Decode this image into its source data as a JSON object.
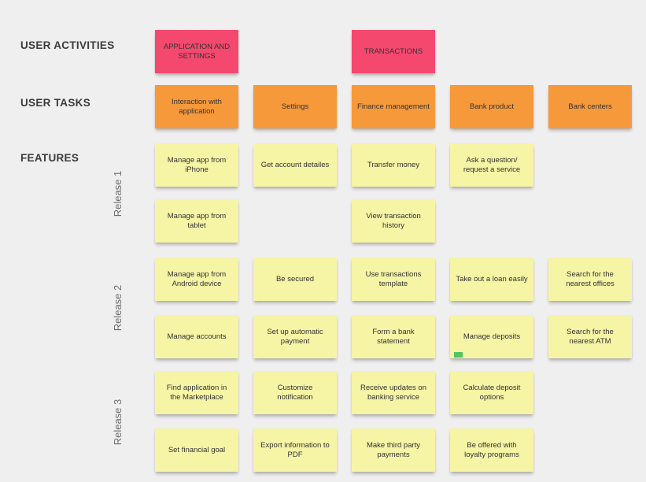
{
  "board": {
    "background_color": "#F0EFF0"
  },
  "colors": {
    "activity": "#F4486F",
    "task": "#F6993B",
    "feature": "#F6F4A5",
    "marker_green": "#4FC462",
    "note_text": "#333333",
    "section_label_text": "#3B3B3B",
    "release_label_text": "#6D6D6D"
  },
  "section_labels": {
    "user_activities": "USER ACTIVITIES",
    "user_tasks": "USER TASKS",
    "features": "FEATURES"
  },
  "release_labels": [
    "Release 1",
    "Release 2",
    "Release 3"
  ],
  "notes": [
    {
      "text": "APPLICATION AND SETTINGS",
      "type": "activity",
      "col": 0,
      "row": 0
    },
    {
      "text": "TRANSACTIONS",
      "type": "activity",
      "col": 2,
      "row": 0
    },
    {
      "text": "Interaction with application",
      "type": "task",
      "col": 0,
      "row": 1
    },
    {
      "text": "Settings",
      "type": "task",
      "col": 1,
      "row": 1
    },
    {
      "text": "Finance management",
      "type": "task",
      "col": 2,
      "row": 1
    },
    {
      "text": "Bank product",
      "type": "task",
      "col": 3,
      "row": 1
    },
    {
      "text": "Bank centers",
      "type": "task",
      "col": 4,
      "row": 1
    },
    {
      "text": "Manage app from iPhone",
      "type": "feature",
      "col": 0,
      "row": 2
    },
    {
      "text": "Get account detailes",
      "type": "feature",
      "col": 1,
      "row": 2
    },
    {
      "text": "Transfer money",
      "type": "feature",
      "col": 2,
      "row": 2
    },
    {
      "text": "Ask a question/ request a service",
      "type": "feature",
      "col": 3,
      "row": 2
    },
    {
      "text": "Manage app from tablet",
      "type": "feature",
      "col": 0,
      "row": 3
    },
    {
      "text": "View transaction history",
      "type": "feature",
      "col": 2,
      "row": 3
    },
    {
      "text": "Manage app from Android device",
      "type": "feature",
      "col": 0,
      "row": 4
    },
    {
      "text": "Be secured",
      "type": "feature",
      "col": 1,
      "row": 4
    },
    {
      "text": "Use transactions template",
      "type": "feature",
      "col": 2,
      "row": 4
    },
    {
      "text": "Take out a loan easily",
      "type": "feature",
      "col": 3,
      "row": 4
    },
    {
      "text": "Search for the nearest offices",
      "type": "feature",
      "col": 4,
      "row": 4
    },
    {
      "text": "Manage accounts",
      "type": "feature",
      "col": 0,
      "row": 5
    },
    {
      "text": "Set up automatic payment",
      "type": "feature",
      "col": 1,
      "row": 5
    },
    {
      "text": "Form a bank statement",
      "type": "feature",
      "col": 2,
      "row": 5
    },
    {
      "text": "Manage deposits",
      "type": "feature",
      "col": 3,
      "row": 5,
      "marker": true
    },
    {
      "text": "Search for the nearest ATM",
      "type": "feature",
      "col": 4,
      "row": 5
    },
    {
      "text": "Find application in the Marketplace",
      "type": "feature",
      "col": 0,
      "row": 6
    },
    {
      "text": "Customize notification",
      "type": "feature",
      "col": 1,
      "row": 6
    },
    {
      "text": "Receive updates on banking service",
      "type": "feature",
      "col": 2,
      "row": 6
    },
    {
      "text": "Calculate deposit options",
      "type": "feature",
      "col": 3,
      "row": 6
    },
    {
      "text": "Set financial goal",
      "type": "feature",
      "col": 0,
      "row": 7
    },
    {
      "text": "Export information to PDF",
      "type": "feature",
      "col": 1,
      "row": 7
    },
    {
      "text": "Make third party payments",
      "type": "feature",
      "col": 2,
      "row": 7
    },
    {
      "text": "Be offered with loyalty programs",
      "type": "feature",
      "col": 3,
      "row": 7
    }
  ]
}
